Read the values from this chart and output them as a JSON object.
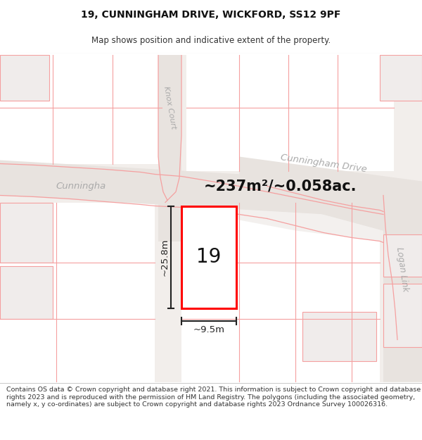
{
  "title_line1": "19, CUNNINGHAM DRIVE, WICKFORD, SS12 9PF",
  "title_line2": "Map shows position and indicative extent of the property.",
  "footer_text": "Contains OS data © Crown copyright and database right 2021. This information is subject to Crown copyright and database rights 2023 and is reproduced with the permission of HM Land Registry. The polygons (including the associated geometry, namely x, y co-ordinates) are subject to Crown copyright and database rights 2023 Ordnance Survey 100026316.",
  "area_text": "~237m²/~0.058ac.",
  "property_number": "19",
  "dim_width": "~9.5m",
  "dim_height": "~25.8m",
  "map_bg": "#f2eeeb",
  "road_bg": "#e8e3df",
  "white_area": "#ffffff",
  "plot_fill": "#ffffff",
  "plot_border": "#ff0000",
  "neighbor_fill": "#f0eceb",
  "neighbor_edge": "#f5a0a0",
  "dark_area": "#ddd8d4",
  "road_label_color": "#aaaaaa",
  "dim_color": "#222222",
  "text_color": "#333333",
  "title_fontsize": 10,
  "subtitle_fontsize": 8.5,
  "footer_fontsize": 6.8
}
